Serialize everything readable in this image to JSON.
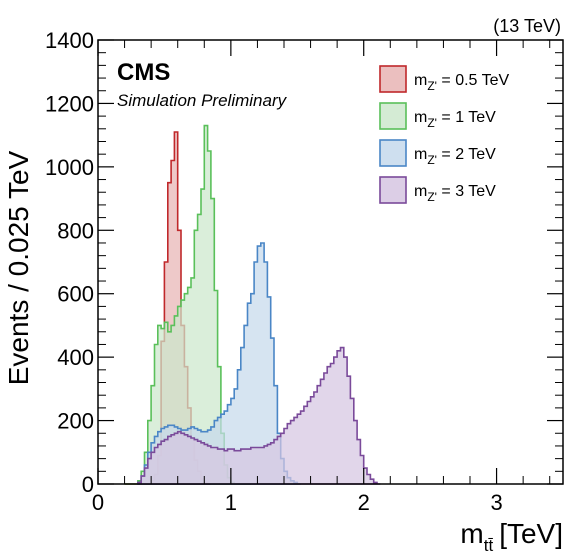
{
  "chart_data": {
    "type": "area",
    "experiment_label": "CMS",
    "sublabel": "Simulation Preliminary",
    "energy_label": "(13 TeV)",
    "xlabel": "[TeV]",
    "xlabel_symbol": "m",
    "xlabel_subscript": "tt̄",
    "ylabel": "Events / 0.025 TeV",
    "xlim": [
      0,
      3.5
    ],
    "ylim": [
      0,
      1400
    ],
    "xticks": [
      0,
      1,
      2,
      3
    ],
    "yticks": [
      0,
      200,
      400,
      600,
      800,
      1000,
      1200,
      1400
    ],
    "bin_width": 0.025,
    "grid": false,
    "legend_position": "top-right",
    "series": [
      {
        "name": "m_{Z'} = 0.5 TeV",
        "legend_prefix": "m",
        "legend_sub": "Z'",
        "legend_value": " = 0.5 TeV",
        "fill": "#e8b4b4",
        "stroke": "#c0282b",
        "x_start": 0.2,
        "values": [
          0,
          0,
          0,
          0,
          0,
          0,
          0,
          0,
          10,
          30,
          90,
          450,
          700,
          950,
          1020,
          1110,
          800,
          500,
          370,
          240,
          140,
          75,
          40,
          15,
          5,
          0
        ]
      },
      {
        "name": "m_{Z'} = 1 TeV",
        "legend_prefix": "m",
        "legend_sub": "Z'",
        "legend_value": " = 1 TeV",
        "fill": "#cce8cc",
        "stroke": "#5ac05a",
        "x_start": 0.2,
        "values": [
          0,
          0,
          0,
          0,
          10,
          40,
          100,
          200,
          310,
          440,
          500,
          490,
          510,
          480,
          500,
          530,
          560,
          580,
          600,
          620,
          650,
          800,
          850,
          930,
          1130,
          1050,
          900,
          610,
          370,
          160,
          60,
          20,
          5,
          0,
          0,
          0,
          0,
          0
        ]
      },
      {
        "name": "m_{Z'} = 2 TeV",
        "legend_prefix": "m",
        "legend_sub": "Z'",
        "legend_value": " = 2 TeV",
        "fill": "#c6d9ec",
        "stroke": "#4a86c6",
        "x_start": 0.3,
        "values": [
          5,
          25,
          60,
          100,
          130,
          150,
          165,
          175,
          180,
          185,
          185,
          180,
          175,
          170,
          170,
          175,
          180,
          175,
          170,
          165,
          165,
          170,
          180,
          200,
          210,
          220,
          230,
          250,
          270,
          300,
          360,
          430,
          500,
          570,
          600,
          700,
          750,
          760,
          700,
          590,
          460,
          310,
          160,
          80,
          40,
          20,
          10,
          5,
          0
        ]
      },
      {
        "name": "m_{Z'} = 3 TeV",
        "legend_prefix": "m",
        "legend_sub": "Z'",
        "legend_value": " = 3 TeV",
        "fill": "#d6c6e2",
        "stroke": "#7a4a9a",
        "x_start": 0.3,
        "values": [
          5,
          25,
          50,
          80,
          100,
          115,
          125,
          135,
          140,
          150,
          155,
          160,
          165,
          160,
          155,
          150,
          145,
          140,
          135,
          130,
          125,
          120,
          115,
          115,
          110,
          110,
          105,
          110,
          110,
          105,
          105,
          110,
          110,
          110,
          115,
          115,
          115,
          115,
          120,
          125,
          130,
          140,
          150,
          160,
          175,
          190,
          200,
          210,
          220,
          230,
          245,
          260,
          275,
          290,
          310,
          330,
          350,
          370,
          380,
          400,
          420,
          430,
          400,
          340,
          270,
          200,
          140,
          90,
          50,
          30,
          15,
          5,
          0
        ]
      }
    ]
  }
}
